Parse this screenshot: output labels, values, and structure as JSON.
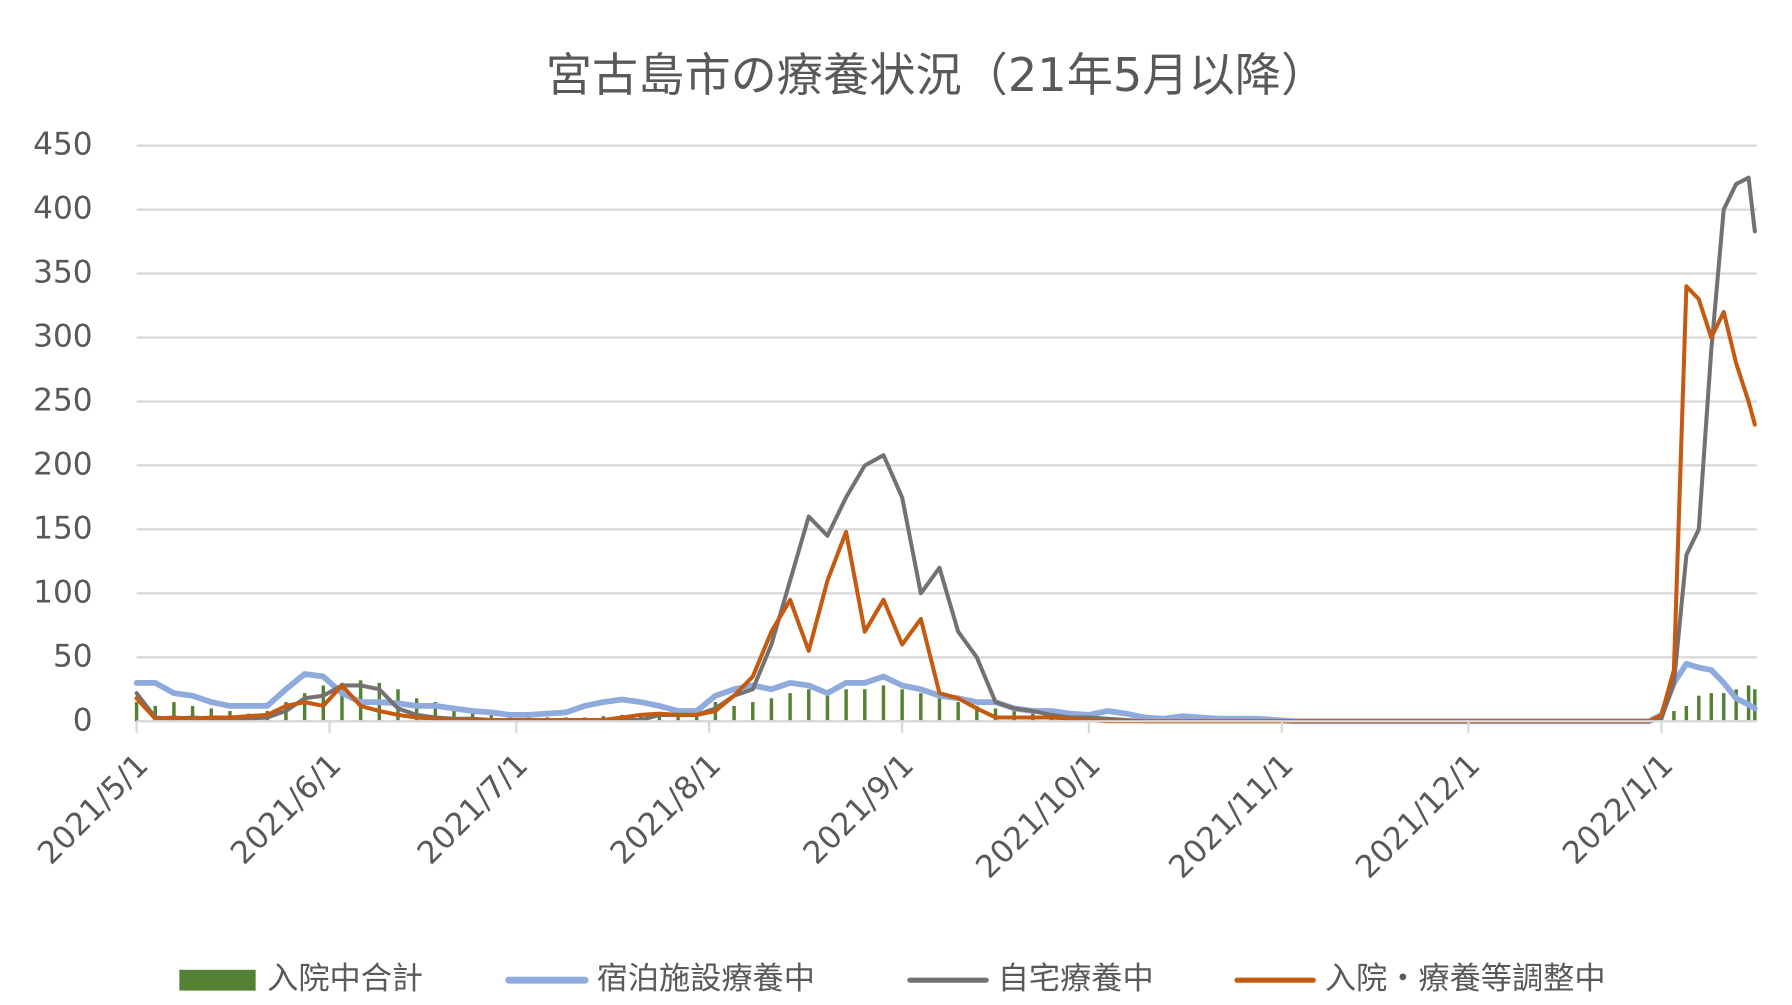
{
  "chart_data": {
    "type": "combo",
    "title": "宮古島市の療養状況（21年5月以降）",
    "x": [
      "2021/5/1",
      "2021/5/4",
      "2021/5/7",
      "2021/5/10",
      "2021/5/13",
      "2021/5/16",
      "2021/5/19",
      "2021/5/22",
      "2021/5/25",
      "2021/5/28",
      "2021/5/31",
      "2021/6/3",
      "2021/6/6",
      "2021/6/9",
      "2021/6/12",
      "2021/6/15",
      "2021/6/18",
      "2021/6/21",
      "2021/6/24",
      "2021/6/27",
      "2021/6/30",
      "2021/7/3",
      "2021/7/6",
      "2021/7/9",
      "2021/7/12",
      "2021/7/15",
      "2021/7/18",
      "2021/7/21",
      "2021/7/24",
      "2021/7/27",
      "2021/7/30",
      "2021/8/2",
      "2021/8/5",
      "2021/8/8",
      "2021/8/11",
      "2021/8/14",
      "2021/8/17",
      "2021/8/20",
      "2021/8/23",
      "2021/8/26",
      "2021/8/29",
      "2021/9/1",
      "2021/9/4",
      "2021/9/7",
      "2021/9/10",
      "2021/9/13",
      "2021/9/16",
      "2021/9/19",
      "2021/9/22",
      "2021/9/25",
      "2021/9/28",
      "2021/10/1",
      "2021/10/4",
      "2021/10/7",
      "2021/10/10",
      "2021/10/13",
      "2021/10/16",
      "2021/10/19",
      "2021/10/22",
      "2021/10/25",
      "2021/10/28",
      "2021/10/31",
      "2021/11/3",
      "2021/11/6",
      "2021/11/9",
      "2021/11/12",
      "2021/11/15",
      "2021/11/18",
      "2021/11/21",
      "2021/11/24",
      "2021/11/27",
      "2021/11/30",
      "2021/12/3",
      "2021/12/6",
      "2021/12/9",
      "2021/12/12",
      "2021/12/15",
      "2021/12/18",
      "2021/12/21",
      "2021/12/24",
      "2021/12/27",
      "2021/12/30",
      "2022/1/1",
      "2022/1/3",
      "2022/1/5",
      "2022/1/7",
      "2022/1/9",
      "2022/1/11",
      "2022/1/13",
      "2022/1/15",
      "2022/1/16"
    ],
    "series": [
      {
        "name": "入院中合計",
        "type": "bar",
        "color": "#548235",
        "values": [
          15,
          12,
          15,
          12,
          10,
          8,
          6,
          8,
          15,
          22,
          28,
          30,
          32,
          30,
          25,
          18,
          15,
          12,
          10,
          8,
          5,
          4,
          3,
          3,
          3,
          4,
          5,
          5,
          5,
          5,
          6,
          15,
          12,
          15,
          18,
          22,
          25,
          22,
          25,
          25,
          28,
          25,
          22,
          18,
          15,
          12,
          10,
          8,
          6,
          5,
          4,
          3,
          3,
          2,
          2,
          1,
          1,
          1,
          0,
          0,
          0,
          0,
          0,
          0,
          0,
          0,
          0,
          0,
          0,
          0,
          0,
          0,
          0,
          0,
          0,
          0,
          0,
          0,
          0,
          0,
          0,
          0,
          2,
          8,
          12,
          20,
          22,
          22,
          25,
          28,
          25
        ]
      },
      {
        "name": "宿泊施設療養中",
        "type": "line",
        "color": "#8faadc",
        "values": [
          30,
          30,
          22,
          20,
          15,
          12,
          12,
          12,
          25,
          37,
          35,
          22,
          15,
          15,
          14,
          12,
          12,
          10,
          8,
          7,
          5,
          5,
          6,
          7,
          12,
          15,
          17,
          15,
          12,
          8,
          8,
          20,
          25,
          28,
          25,
          30,
          28,
          22,
          30,
          30,
          35,
          28,
          25,
          20,
          18,
          15,
          15,
          10,
          8,
          8,
          6,
          5,
          8,
          6,
          3,
          2,
          4,
          3,
          2,
          2,
          2,
          1,
          0,
          0,
          0,
          0,
          0,
          0,
          0,
          0,
          0,
          0,
          0,
          0,
          0,
          0,
          0,
          0,
          0,
          0,
          0,
          0,
          5,
          30,
          45,
          42,
          40,
          30,
          18,
          13,
          10
        ]
      },
      {
        "name": "自宅療養中",
        "type": "line",
        "color": "#767171",
        "values": [
          22,
          3,
          2,
          3,
          2,
          2,
          2,
          3,
          8,
          18,
          20,
          28,
          28,
          25,
          10,
          5,
          3,
          2,
          2,
          1,
          1,
          1,
          1,
          1,
          1,
          1,
          1,
          1,
          5,
          5,
          5,
          10,
          20,
          25,
          60,
          110,
          160,
          145,
          175,
          200,
          208,
          175,
          100,
          120,
          70,
          50,
          15,
          10,
          8,
          5,
          3,
          3,
          2,
          1,
          0,
          0,
          0,
          0,
          0,
          0,
          0,
          0,
          0,
          0,
          0,
          0,
          0,
          0,
          0,
          0,
          0,
          0,
          0,
          0,
          0,
          0,
          0,
          0,
          0,
          0,
          0,
          0,
          2,
          30,
          130,
          150,
          290,
          400,
          420,
          425,
          383
        ]
      },
      {
        "name": "入院・療養等調整中",
        "type": "line",
        "color": "#c55a11",
        "values": [
          18,
          2,
          3,
          2,
          3,
          3,
          4,
          5,
          12,
          15,
          12,
          28,
          12,
          8,
          5,
          3,
          2,
          1,
          1,
          1,
          1,
          1,
          1,
          1,
          1,
          1,
          3,
          5,
          6,
          5,
          5,
          8,
          20,
          35,
          70,
          95,
          55,
          110,
          148,
          70,
          95,
          60,
          80,
          22,
          18,
          10,
          3,
          3,
          3,
          3,
          2,
          1,
          0,
          0,
          0,
          0,
          0,
          0,
          0,
          0,
          0,
          0,
          0,
          0,
          0,
          0,
          0,
          0,
          0,
          0,
          0,
          0,
          0,
          0,
          0,
          0,
          0,
          0,
          0,
          0,
          0,
          0,
          5,
          40,
          340,
          330,
          300,
          320,
          280,
          250,
          232
        ]
      }
    ],
    "xlim": [
      "2021/5/1",
      "2022/1/16"
    ],
    "xticks": [
      "2021/5/1",
      "2021/6/1",
      "2021/7/1",
      "2021/8/1",
      "2021/9/1",
      "2021/10/1",
      "2021/11/1",
      "2021/12/1",
      "2022/1/1"
    ],
    "ylim": [
      0,
      450
    ],
    "yticks": [
      0,
      50,
      100,
      150,
      200,
      250,
      300,
      350,
      400,
      450
    ],
    "grid": true,
    "legend": "bottom"
  }
}
